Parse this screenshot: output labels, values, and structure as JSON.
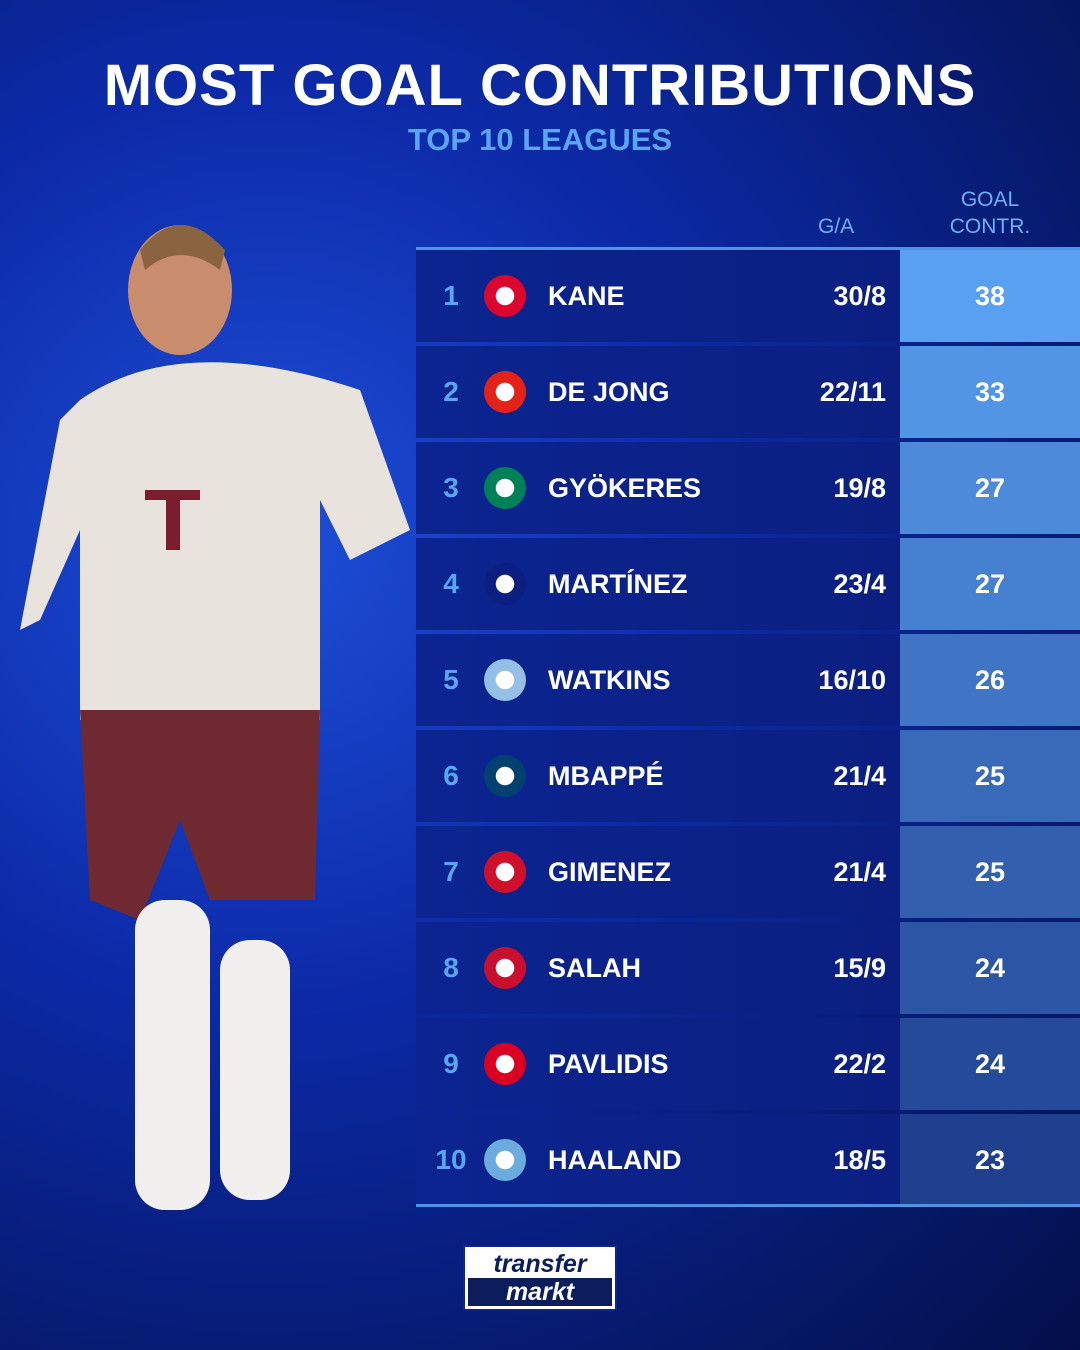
{
  "title": "MOST GOAL CONTRIBUTIONS",
  "subtitle": "TOP 10 LEAGUES",
  "headers": {
    "ga": "G/A",
    "gc_line1": "GOAL",
    "gc_line2": "CONTR."
  },
  "brand": {
    "line1": "transfer",
    "line2": "markt"
  },
  "colors": {
    "accent": "#5aa6f5",
    "row_bg": "#0b2490",
    "gc_top": "#5aa0f0",
    "gc_bottom": "#1f3f8f"
  },
  "rows": [
    {
      "rank": "1",
      "club_icon": "bayern-munich-crest",
      "name": "KANE",
      "ga": "30/8",
      "gc": "38",
      "logo": "#dc052d"
    },
    {
      "rank": "2",
      "club_icon": "psv-crest",
      "name": "DE JONG",
      "ga": "22/11",
      "gc": "33",
      "logo": "#e32219"
    },
    {
      "rank": "3",
      "club_icon": "sporting-cp-crest",
      "name": "GYÖKERES",
      "ga": "19/8",
      "gc": "27",
      "logo": "#008057"
    },
    {
      "rank": "4",
      "club_icon": "inter-milan-crest",
      "name": "MARTÍNEZ",
      "ga": "23/4",
      "gc": "27",
      "logo": "#0a1f80"
    },
    {
      "rank": "5",
      "club_icon": "aston-villa-crest",
      "name": "WATKINS",
      "ga": "16/10",
      "gc": "26",
      "logo": "#95bfe5"
    },
    {
      "rank": "6",
      "club_icon": "psg-crest",
      "name": "MBAPPÉ",
      "ga": "21/4",
      "gc": "25",
      "logo": "#004170"
    },
    {
      "rank": "7",
      "club_icon": "feyenoord-crest",
      "name": "GIMENEZ",
      "ga": "21/4",
      "gc": "25",
      "logo": "#d0102b"
    },
    {
      "rank": "8",
      "club_icon": "liverpool-crest",
      "name": "SALAH",
      "ga": "15/9",
      "gc": "24",
      "logo": "#c8102e"
    },
    {
      "rank": "9",
      "club_icon": "az-alkmaar-crest",
      "name": "PAVLIDIS",
      "ga": "22/2",
      "gc": "24",
      "logo": "#db0021"
    },
    {
      "rank": "10",
      "club_icon": "manchester-city-crest",
      "name": "HAALAND",
      "ga": "18/5",
      "gc": "23",
      "logo": "#6cabdd"
    }
  ]
}
